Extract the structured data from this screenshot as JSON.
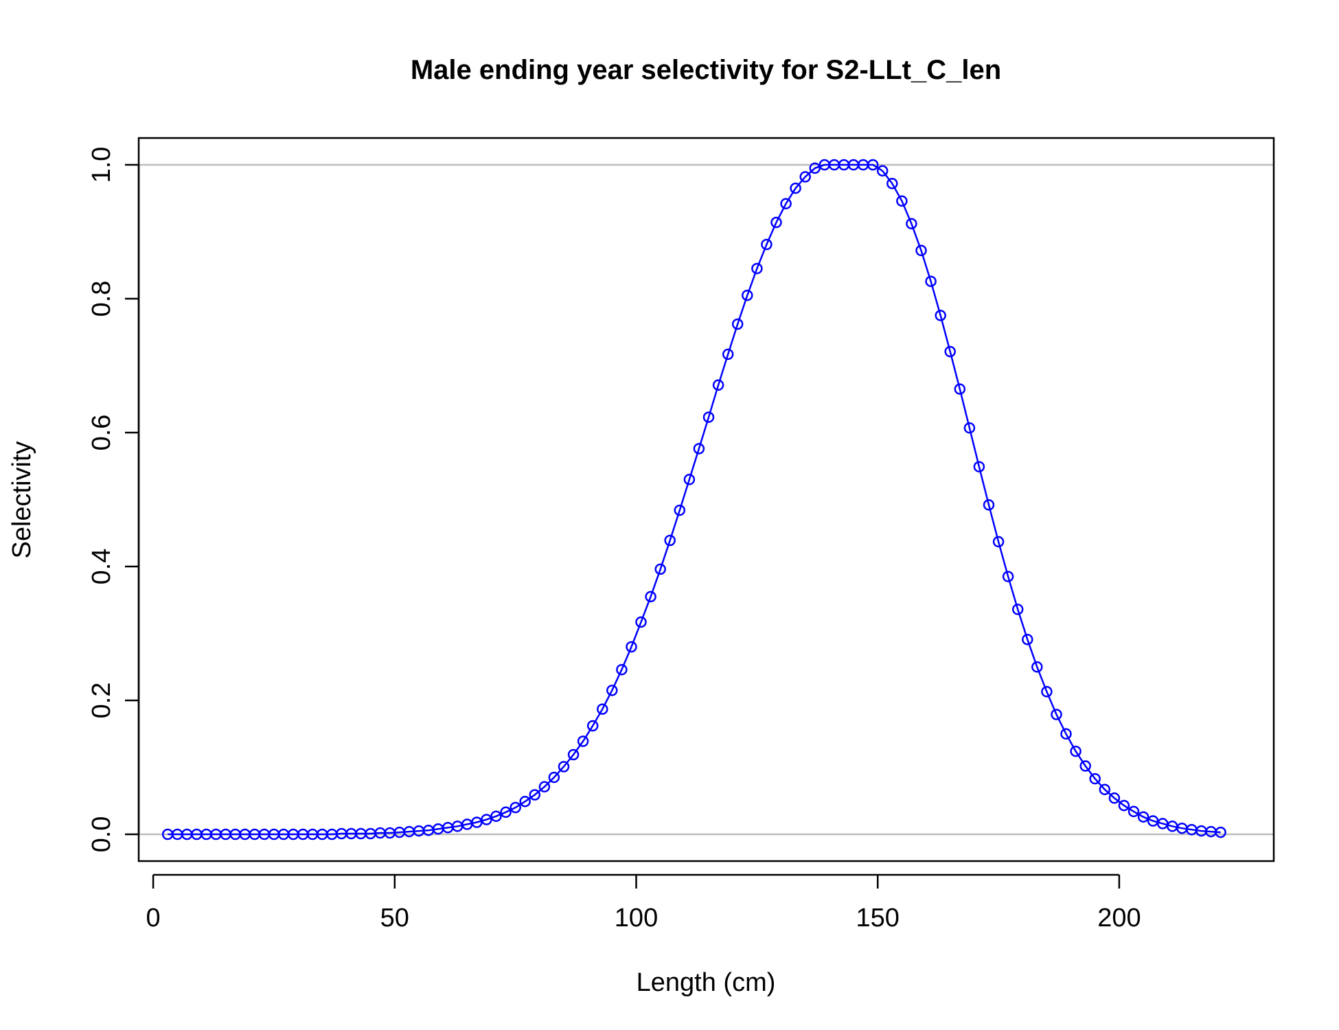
{
  "chart_data": {
    "type": "line",
    "title": "Male ending year selectivity for S2-LLt_C_len",
    "xlabel": "Length (cm)",
    "ylabel": "Selectivity",
    "xlim": [
      -3,
      232
    ],
    "ylim": [
      -0.04,
      1.04
    ],
    "x_ticks": [
      {
        "value": 0,
        "label": "0"
      },
      {
        "value": 50,
        "label": "50"
      },
      {
        "value": 100,
        "label": "100"
      },
      {
        "value": 150,
        "label": "150"
      },
      {
        "value": 200,
        "label": "200"
      }
    ],
    "y_ticks": [
      {
        "value": 0.0,
        "label": "0.0"
      },
      {
        "value": 0.2,
        "label": "0.2"
      },
      {
        "value": 0.4,
        "label": "0.4"
      },
      {
        "value": 0.6,
        "label": "0.6"
      },
      {
        "value": 0.8,
        "label": "0.8"
      },
      {
        "value": 1.0,
        "label": "1.0"
      }
    ],
    "reference_lines_y": [
      0,
      1
    ],
    "marker": "open-circle",
    "series": [
      {
        "color": "#0000ff",
        "x": [
          3,
          5,
          7,
          9,
          11,
          13,
          15,
          17,
          19,
          21,
          23,
          25,
          27,
          29,
          31,
          33,
          35,
          37,
          39,
          41,
          43,
          45,
          47,
          49,
          51,
          53,
          55,
          57,
          59,
          61,
          63,
          65,
          67,
          69,
          71,
          73,
          75,
          77,
          79,
          81,
          83,
          85,
          87,
          89,
          91,
          93,
          95,
          97,
          99,
          101,
          103,
          105,
          107,
          109,
          111,
          113,
          115,
          117,
          119,
          121,
          123,
          125,
          127,
          129,
          131,
          133,
          135,
          137,
          139,
          141,
          143,
          145,
          147,
          149,
          151,
          153,
          155,
          157,
          159,
          161,
          163,
          165,
          167,
          169,
          171,
          173,
          175,
          177,
          179,
          181,
          183,
          185,
          187,
          189,
          191,
          193,
          195,
          197,
          199,
          201,
          203,
          205,
          207,
          209,
          211,
          213,
          215,
          217,
          219,
          221
        ],
        "y": [
          0.0,
          0.0,
          0.0,
          0.0,
          0.0,
          0.0,
          0.0,
          0.0,
          0.0,
          0.0,
          0.0,
          0.0,
          0.0,
          0.0,
          0.0,
          0.0,
          0.0,
          0.0,
          0.001,
          0.001,
          0.001,
          0.001,
          0.002,
          0.002,
          0.003,
          0.004,
          0.005,
          0.006,
          0.008,
          0.01,
          0.012,
          0.015,
          0.018,
          0.022,
          0.027,
          0.033,
          0.04,
          0.049,
          0.059,
          0.071,
          0.085,
          0.101,
          0.119,
          0.139,
          0.162,
          0.187,
          0.215,
          0.246,
          0.28,
          0.317,
          0.355,
          0.396,
          0.439,
          0.484,
          0.53,
          0.576,
          0.623,
          0.671,
          0.717,
          0.762,
          0.805,
          0.845,
          0.881,
          0.914,
          0.942,
          0.965,
          0.982,
          0.995,
          1.0,
          1.0,
          1.0,
          1.0,
          1.0,
          1.0,
          0.991,
          0.972,
          0.946,
          0.912,
          0.872,
          0.826,
          0.775,
          0.721,
          0.665,
          0.607,
          0.549,
          0.492,
          0.437,
          0.385,
          0.336,
          0.291,
          0.25,
          0.213,
          0.179,
          0.15,
          0.124,
          0.102,
          0.083,
          0.067,
          0.054,
          0.043,
          0.034,
          0.026,
          0.02,
          0.016,
          0.012,
          0.009,
          0.007,
          0.005,
          0.004,
          0.003
        ]
      }
    ],
    "grid": false,
    "legend": "none"
  }
}
